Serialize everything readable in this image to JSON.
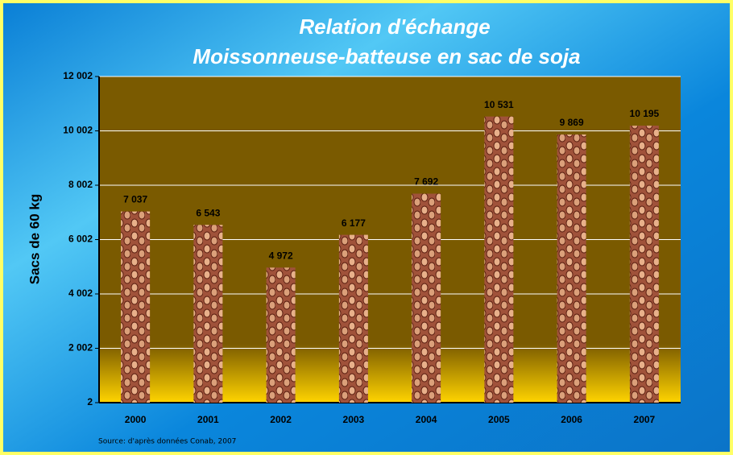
{
  "chart_data": {
    "type": "bar",
    "title": [
      "Relation d'échange",
      "Moissonneuse-batteuse en sac de soja"
    ],
    "y_label": "Sacs de 60 kg",
    "source": "Source: d'après données Conab, 2007",
    "categories": [
      "2000",
      "2001",
      "2002",
      "2003",
      "2004",
      "2005",
      "2006",
      "2007"
    ],
    "values": [
      7037,
      6543,
      4972,
      6177,
      7692,
      10531,
      9869,
      10195
    ],
    "value_labels": [
      "7 037",
      "6 543",
      "4 972",
      "6 177",
      "7 692",
      "10 531",
      "9 869",
      "10 195"
    ],
    "color": "#a0523a",
    "ylim": [
      2,
      12002
    ],
    "yticks": [
      {
        "value": 2,
        "label": "2"
      },
      {
        "value": 2002,
        "label": "2 002"
      },
      {
        "value": 4002,
        "label": "4 002"
      },
      {
        "value": 6002,
        "label": "6 002"
      },
      {
        "value": 8002,
        "label": "8 002"
      },
      {
        "value": 10002,
        "label": "10 002"
      },
      {
        "value": 12002,
        "label": "12 002"
      }
    ],
    "grid": true
  }
}
